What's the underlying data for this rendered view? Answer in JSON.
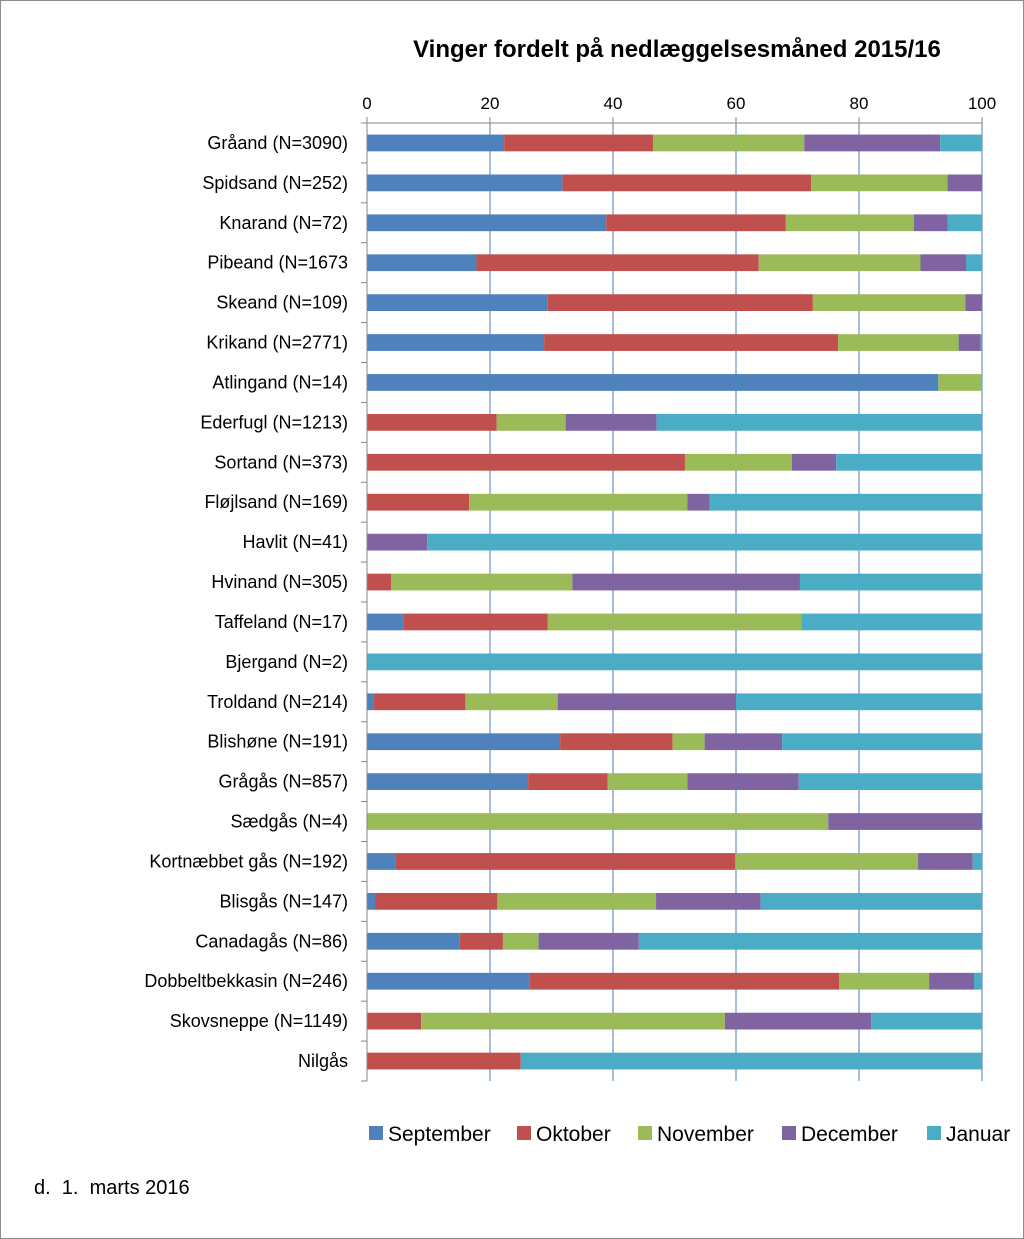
{
  "chart_data": {
    "type": "bar",
    "stacked": true,
    "orientation": "horizontal",
    "title": "Vinger fordelt på nedlæggelsesmåned 2015/16",
    "xlim": [
      0,
      100
    ],
    "xticks": [
      "0",
      "20",
      "40",
      "60",
      "80",
      "100"
    ],
    "xaxis_position": "top",
    "grid": "vertical",
    "legend_position": "bottom",
    "categories": [
      "Gråand (N=3090)",
      "Spidsand (N=252)",
      "Knarand (N=72)",
      "Pibeand (N=1673",
      "Skeand (N=109)",
      "Krikand (N=2771)",
      "Atlingand (N=14)",
      "Ederfugl (N=1213)",
      "Sortand (N=373)",
      "Fløjlsand (N=169)",
      "Havlit (N=41)",
      "Hvinand (N=305)",
      "Taffeland (N=17)",
      "Bjergand (N=2)",
      "Troldand (N=214)",
      "Blishøne (N=191)",
      "Grågås (N=857)",
      "Sædgås (N=4)",
      "Kortnæbbet gås (N=192)",
      "Blisgås (N=147)",
      "Canadagås (N=86)",
      "Dobbeltbekkasin (N=246)",
      "Skovsneppe (N=1149)",
      "Nilgås"
    ],
    "series": [
      {
        "name": "September",
        "color": "#4f81bd",
        "values": [
          22.3,
          31.8,
          38.9,
          17.8,
          29.4,
          28.8,
          92.9,
          0,
          0,
          0,
          0,
          0,
          5.9,
          0,
          1.0,
          31.4,
          26.2,
          0,
          4.7,
          1.3,
          15.1,
          26.4,
          0,
          0
        ]
      },
      {
        "name": "Oktober",
        "color": "#c0504d",
        "values": [
          24.2,
          40.4,
          29.2,
          45.9,
          43.1,
          47.8,
          0,
          21.1,
          51.7,
          16.6,
          0,
          3.9,
          23.5,
          0,
          15.0,
          18.3,
          12.9,
          0,
          55.2,
          19.9,
          7.0,
          50.4,
          8.8,
          25.0
        ]
      },
      {
        "name": "November",
        "color": "#9bbb59",
        "values": [
          24.6,
          22.2,
          20.8,
          26.3,
          24.8,
          19.6,
          7.1,
          11.2,
          17.4,
          35.5,
          0,
          29.5,
          41.2,
          0,
          15.0,
          5.2,
          13.0,
          75.0,
          29.7,
          25.8,
          5.8,
          14.6,
          49.4,
          0
        ]
      },
      {
        "name": "December",
        "color": "#8064a2",
        "values": [
          22.1,
          5.6,
          5.5,
          7.4,
          2.7,
          3.6,
          0,
          14.8,
          7.2,
          3.6,
          9.8,
          37.0,
          0,
          0,
          29.0,
          12.6,
          18.1,
          25.0,
          8.9,
          17.0,
          16.3,
          7.3,
          23.8,
          0
        ]
      },
      {
        "name": "Januar",
        "color": "#4bacc6",
        "values": [
          6.8,
          0,
          5.6,
          2.6,
          0,
          0.2,
          0,
          52.9,
          23.7,
          44.3,
          90.2,
          29.6,
          29.4,
          100,
          40.0,
          32.5,
          29.8,
          0,
          1.5,
          36.0,
          55.8,
          1.3,
          18.0,
          75.0
        ]
      }
    ]
  },
  "footnote": "d.  1.  marts 2016"
}
